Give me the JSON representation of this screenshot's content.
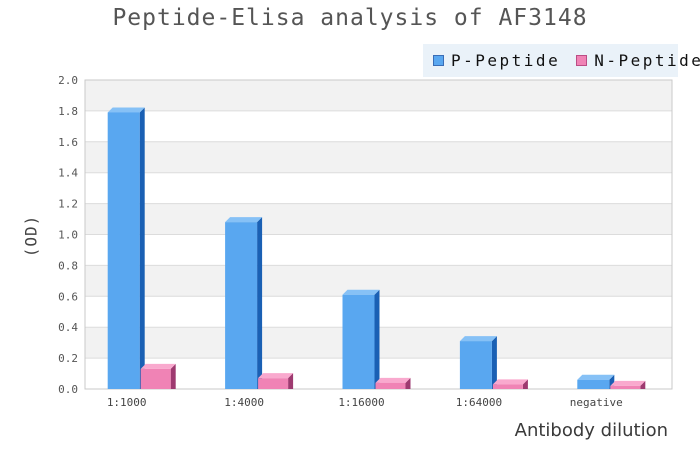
{
  "chart_data": {
    "type": "bar",
    "title": "Peptide-Elisa analysis of AF3148",
    "xlabel": "Antibody dilution",
    "ylabel": "(OD)",
    "categories": [
      "1:1000",
      "1:4000",
      "1:16000",
      "1:64000",
      "negative"
    ],
    "series": [
      {
        "name": "P-Peptide",
        "values": [
          1.79,
          1.08,
          0.61,
          0.31,
          0.06
        ],
        "color": "#59a7f0",
        "color_top": "#86c1f6",
        "color_side": "#1a60b4",
        "legend_border": "#3a6db6"
      },
      {
        "name": "N-Peptide",
        "values": [
          0.13,
          0.07,
          0.04,
          0.03,
          0.02
        ],
        "color": "#f083b5",
        "color_top": "#f9a9ce",
        "color_side": "#9e3a70",
        "legend_border": "#bb4d85"
      }
    ],
    "ylim": [
      0,
      2.0
    ],
    "ytick_step": 0.2,
    "yticks": [
      "0.0",
      "0.2",
      "0.4",
      "0.6",
      "0.8",
      "1.0",
      "1.2",
      "1.4",
      "1.6",
      "1.8",
      "2.0"
    ],
    "grid": "horizontal-bands",
    "band_colors": [
      "#f2f2f2",
      "#ffffff"
    ],
    "gridline_color": "#dcdcdc",
    "plot_border_color": "#c9c9c9",
    "legend_position": "top-right",
    "legend_background": "#eaf2f9",
    "title_color": "#555555",
    "tick_label_color": "#555555"
  }
}
